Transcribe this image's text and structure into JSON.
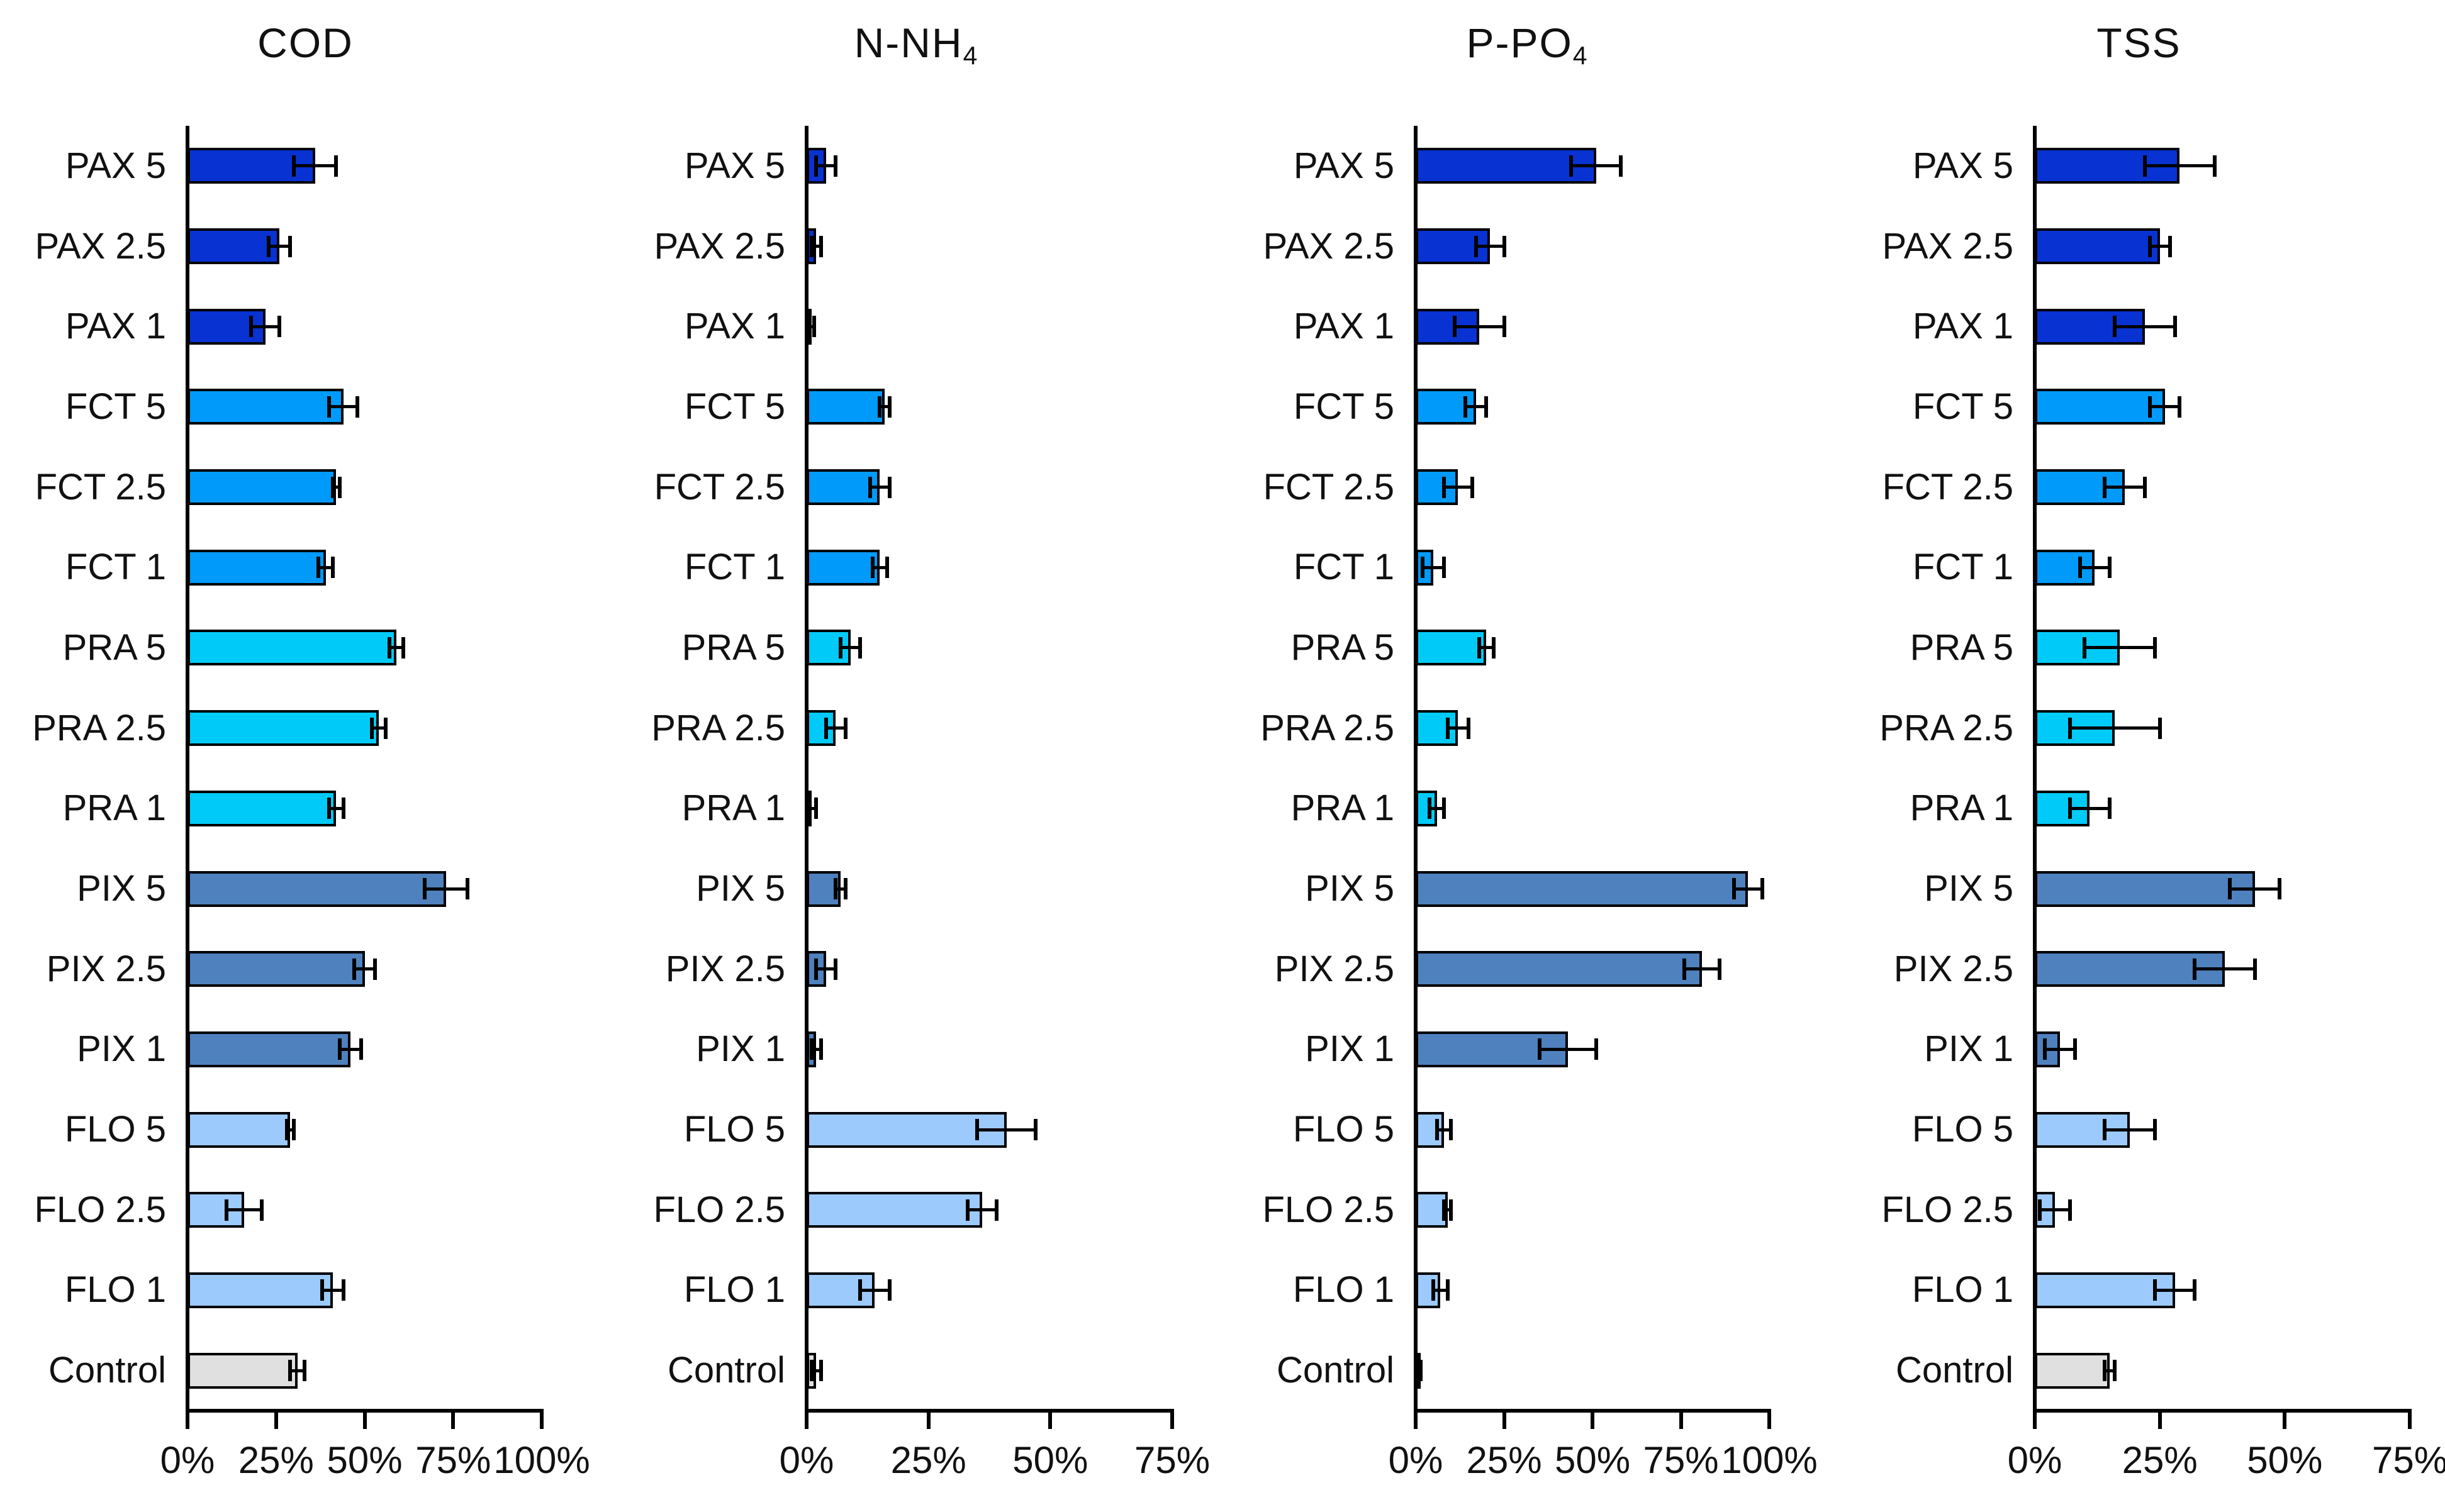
{
  "chart_data": {
    "type": "bar",
    "orientation": "horizontal",
    "unit": "percent",
    "grid": false,
    "legend": "none",
    "categories": [
      "PAX 5",
      "PAX 2.5",
      "PAX 1",
      "FCT 5",
      "FCT 2.5",
      "FCT 1",
      "PRA 5",
      "PRA 2.5",
      "PRA 1",
      "PIX 5",
      "PIX 2.5",
      "PIX 1",
      "FLO 5",
      "FLO 2.5",
      "FLO 1",
      "Control"
    ],
    "bar_colors": [
      "#0833D2",
      "#0833D2",
      "#0833D2",
      "#009AFA",
      "#009AFA",
      "#009AFA",
      "#00CBF8",
      "#00CBF8",
      "#00CBF8",
      "#4E81BE",
      "#4E81BE",
      "#4E81BE",
      "#9CCAFC",
      "#9CCAFC",
      "#9CCAFC",
      "#E0E0E0"
    ],
    "group_colors": {
      "PAX": "#0833D2",
      "FCT": "#009AFA",
      "PRA": "#00CBF8",
      "PIX": "#4E81BE",
      "FLO": "#9CCAFC",
      "Control": "#E0E0E0"
    },
    "error_bar_color": "#000000",
    "bar_border_color": "#000000",
    "panels": [
      {
        "title": "COD",
        "title_sub": "",
        "xlim": [
          0,
          100
        ],
        "tick_labels": [
          "0%",
          "25%",
          "50%",
          "75%",
          "100%"
        ],
        "tick_values": [
          0,
          25,
          50,
          75,
          100
        ],
        "values": [
          36,
          26,
          22,
          44,
          42,
          39,
          59,
          54,
          42,
          73,
          50,
          46,
          29,
          16,
          41,
          31
        ],
        "errors": [
          6,
          3,
          4,
          4,
          1,
          2,
          2,
          2,
          2,
          6,
          3,
          3,
          1,
          5,
          3,
          2
        ]
      },
      {
        "title": "N-NH",
        "title_sub": "4",
        "xlim": [
          0,
          75
        ],
        "tick_labels": [
          "0%",
          "25%",
          "50%",
          "75%"
        ],
        "tick_values": [
          0,
          25,
          50,
          75
        ],
        "values": [
          4,
          2,
          1,
          16,
          15,
          15,
          9,
          6,
          1,
          7,
          4,
          2,
          41,
          36,
          14,
          2
        ],
        "errors": [
          2,
          1,
          0.5,
          1,
          2,
          1.5,
          2,
          2,
          1,
          1,
          2,
          1,
          6,
          3,
          3,
          1
        ]
      },
      {
        "title": "P-PO",
        "title_sub": "4",
        "xlim": [
          0,
          100
        ],
        "tick_labels": [
          "0%",
          "25%",
          "50%",
          "75%",
          "100%"
        ],
        "tick_values": [
          0,
          25,
          50,
          75,
          100
        ],
        "values": [
          51,
          21,
          18,
          17,
          12,
          5,
          20,
          12,
          6,
          94,
          81,
          43,
          8,
          9,
          7,
          1
        ],
        "errors": [
          7,
          4,
          7,
          3,
          4,
          3,
          2,
          3,
          2,
          4,
          5,
          8,
          2,
          1,
          2,
          0.5
        ]
      },
      {
        "title": "TSS",
        "title_sub": "",
        "xlim": [
          0,
          75
        ],
        "tick_labels": [
          "0%",
          "25%",
          "50%",
          "75%"
        ],
        "tick_values": [
          0,
          25,
          50,
          75
        ],
        "values": [
          29,
          25,
          22,
          26,
          18,
          12,
          17,
          16,
          11,
          44,
          38,
          5,
          19,
          4,
          28,
          15
        ],
        "errors": [
          7,
          2,
          6,
          3,
          4,
          3,
          7,
          9,
          4,
          5,
          6,
          3,
          5,
          3,
          4,
          1
        ]
      }
    ]
  }
}
